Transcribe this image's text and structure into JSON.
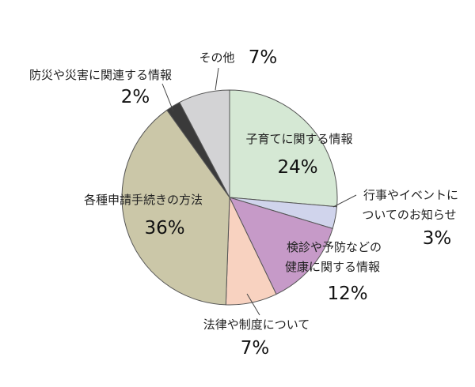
{
  "chart_data": {
    "type": "pie",
    "title": "",
    "start_angle": "12 o'clock",
    "direction": "clockwise",
    "legend": "none",
    "slices": [
      {
        "label_lines": [
          "子育てに関する情報"
        ],
        "value": 24,
        "value_label": "24%",
        "color": "#d5e8d4"
      },
      {
        "label_lines": [
          "行事やイベントに",
          "ついてのお知らせ"
        ],
        "value": 3,
        "value_label": "3%",
        "color": "#d0d4ec"
      },
      {
        "label_lines": [
          "検診や予防などの",
          "健康に関する情報"
        ],
        "value": 12,
        "value_label": "12%",
        "color": "#c69ac8"
      },
      {
        "label_lines": [
          "法律や制度について"
        ],
        "value": 7,
        "value_label": "7%",
        "color": "#f8d2c0"
      },
      {
        "label_lines": [
          "各種申請手続きの方法"
        ],
        "value": 36,
        "value_label": "36%",
        "color": "#cbc7a8"
      },
      {
        "label_lines": [
          "防災や災害に関連する情報"
        ],
        "value": 2,
        "value_label": "2%",
        "color": "#3a3a3a"
      },
      {
        "label_lines": [
          "その他"
        ],
        "value": 7,
        "value_label": "7%",
        "color": "#d3d3d5"
      }
    ]
  }
}
